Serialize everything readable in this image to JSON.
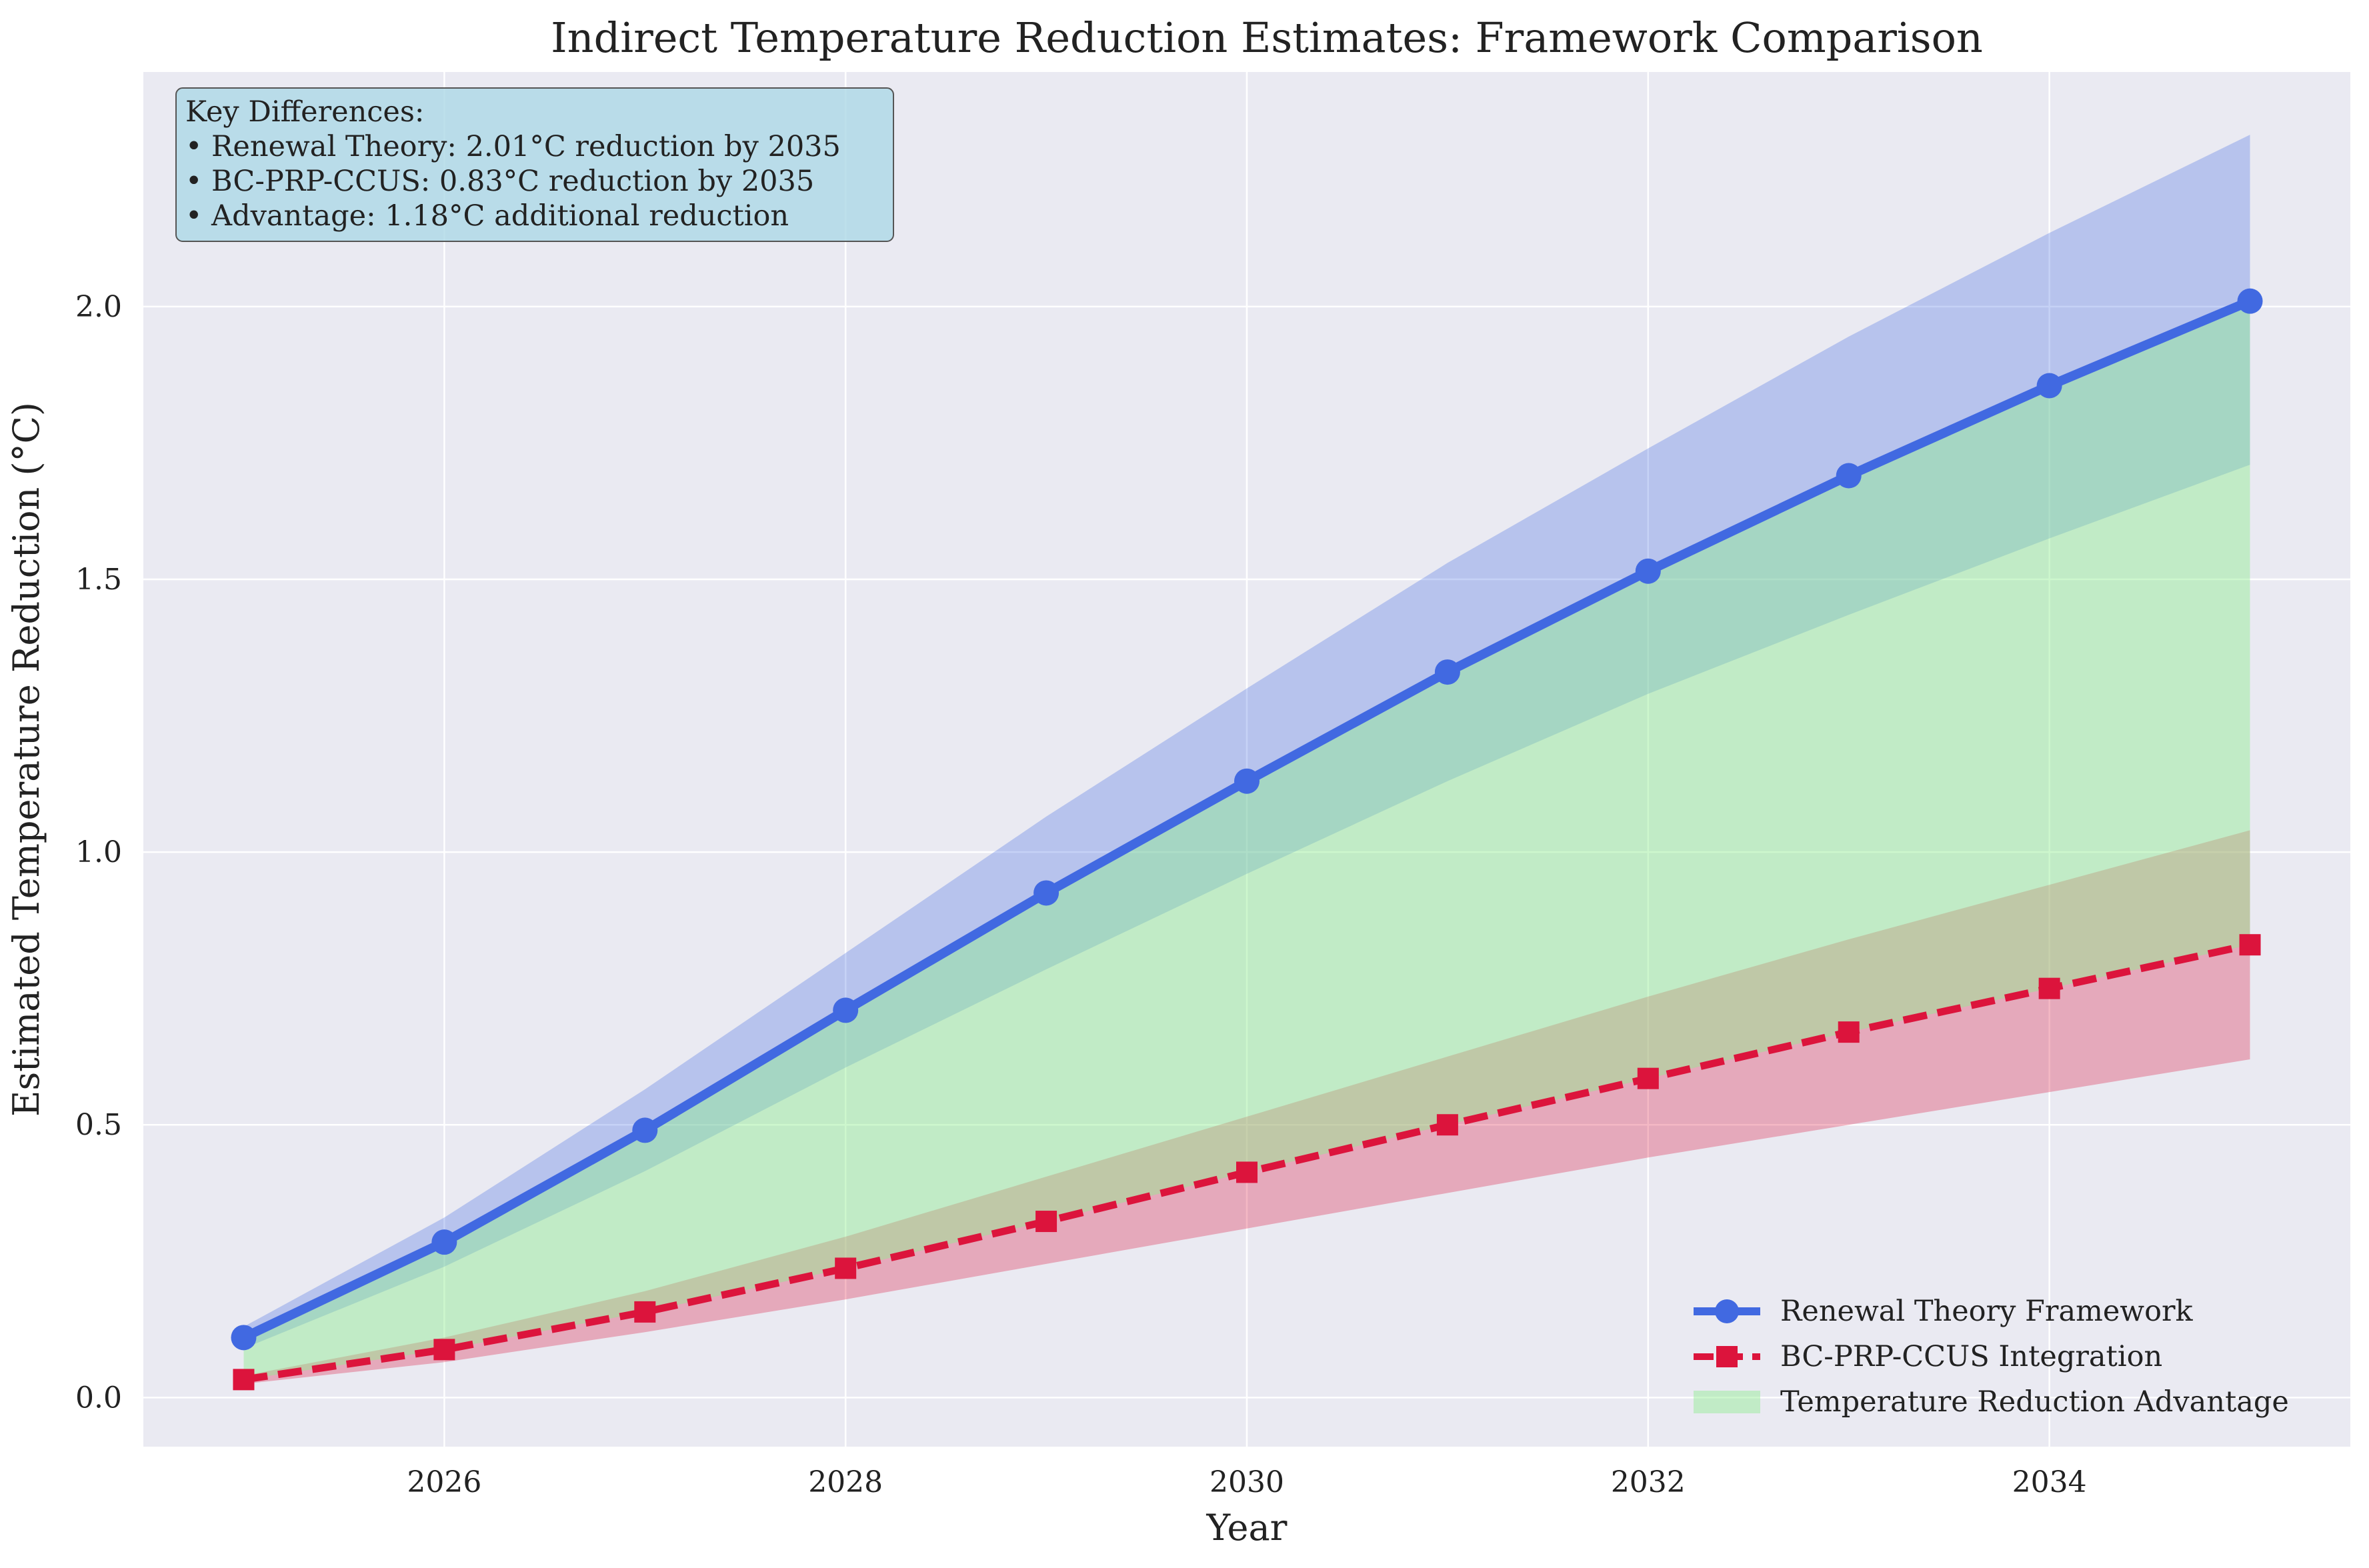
{
  "chart_data": {
    "type": "line",
    "title": "Indirect Temperature Reduction Estimates: Framework Comparison",
    "xlabel": "Year",
    "ylabel": "Estimated Temperature Reduction (°C)",
    "xlim": [
      2024.5,
      2035.5
    ],
    "ylim": [
      -0.09,
      2.43
    ],
    "x": [
      2025,
      2026,
      2027,
      2028,
      2029,
      2030,
      2031,
      2032,
      2033,
      2034,
      2035
    ],
    "xticks": [
      2026,
      2028,
      2030,
      2032,
      2034
    ],
    "yticks": [
      0.0,
      0.5,
      1.0,
      1.5,
      2.0
    ],
    "ytick_labels": [
      "0.0",
      "0.5",
      "1.0",
      "1.5",
      "2.0"
    ],
    "grid": true,
    "legend_position": "lower-right",
    "series": [
      {
        "name": "Renewal Theory Framework",
        "values": [
          0.11,
          0.285,
          0.49,
          0.71,
          0.925,
          1.13,
          1.33,
          1.515,
          1.69,
          1.855,
          2.01
        ],
        "band_upper": [
          0.13,
          0.33,
          0.565,
          0.815,
          1.065,
          1.3,
          1.53,
          1.74,
          1.945,
          2.135,
          2.315
        ],
        "band_lower": [
          0.09,
          0.24,
          0.415,
          0.605,
          0.785,
          0.96,
          1.13,
          1.29,
          1.435,
          1.575,
          1.71
        ],
        "color": "#4169e1",
        "marker": "circle",
        "linestyle": "solid"
      },
      {
        "name": "BC-PRP-CCUS Integration",
        "values": [
          0.033,
          0.088,
          0.157,
          0.237,
          0.323,
          0.413,
          0.5,
          0.585,
          0.67,
          0.75,
          0.83
        ],
        "band_upper": [
          0.04,
          0.11,
          0.195,
          0.295,
          0.405,
          0.515,
          0.625,
          0.735,
          0.84,
          0.94,
          1.04
        ],
        "band_lower": [
          0.025,
          0.065,
          0.12,
          0.18,
          0.245,
          0.31,
          0.375,
          0.44,
          0.5,
          0.56,
          0.62
        ],
        "color": "#dc143c",
        "marker": "square",
        "linestyle": "dashed"
      }
    ],
    "advantage_fill": {
      "name": "Temperature Reduction Advantage",
      "color": "#90ee90"
    },
    "annotation": {
      "lines": [
        "Key Differences:",
        "• Renewal Theory: 2.01°C reduction by 2035",
        "• BC-PRP-CCUS: 0.83°C reduction by 2035",
        "• Advantage: 1.18°C additional reduction"
      ]
    }
  }
}
